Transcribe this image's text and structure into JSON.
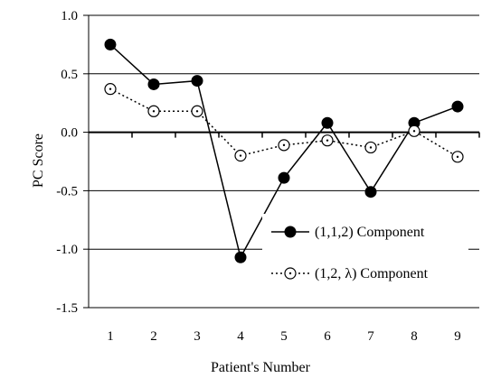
{
  "chart_data": {
    "type": "line",
    "xlabel": "Patient's Number",
    "ylabel": "PC Score",
    "ylim": [
      -1.5,
      1.0
    ],
    "y_ticks": [
      "1.0",
      "0.5",
      "0.0",
      "-0.5",
      "-1.0",
      "-1.5"
    ],
    "y_tick_values": [
      1.0,
      0.5,
      0.0,
      -0.5,
      -1.0,
      -1.5
    ],
    "categories": [
      "1",
      "2",
      "3",
      "4",
      "5",
      "6",
      "7",
      "8",
      "9"
    ],
    "grid": "horizontal",
    "legend_position": "bottom-right",
    "series": [
      {
        "name": "(1,1,2) Component",
        "line_style": "solid",
        "marker": "filled-circle",
        "color": "#000000",
        "values": [
          0.75,
          0.41,
          0.44,
          -1.07,
          -0.39,
          0.08,
          -0.51,
          0.08,
          0.22
        ]
      },
      {
        "name": "(1,2, λ) Component",
        "line_style": "dotted",
        "marker": "open-circle-dot",
        "color": "#000000",
        "values": [
          0.37,
          0.18,
          0.18,
          -0.2,
          -0.11,
          -0.07,
          -0.13,
          0.01,
          -0.21
        ]
      }
    ]
  }
}
